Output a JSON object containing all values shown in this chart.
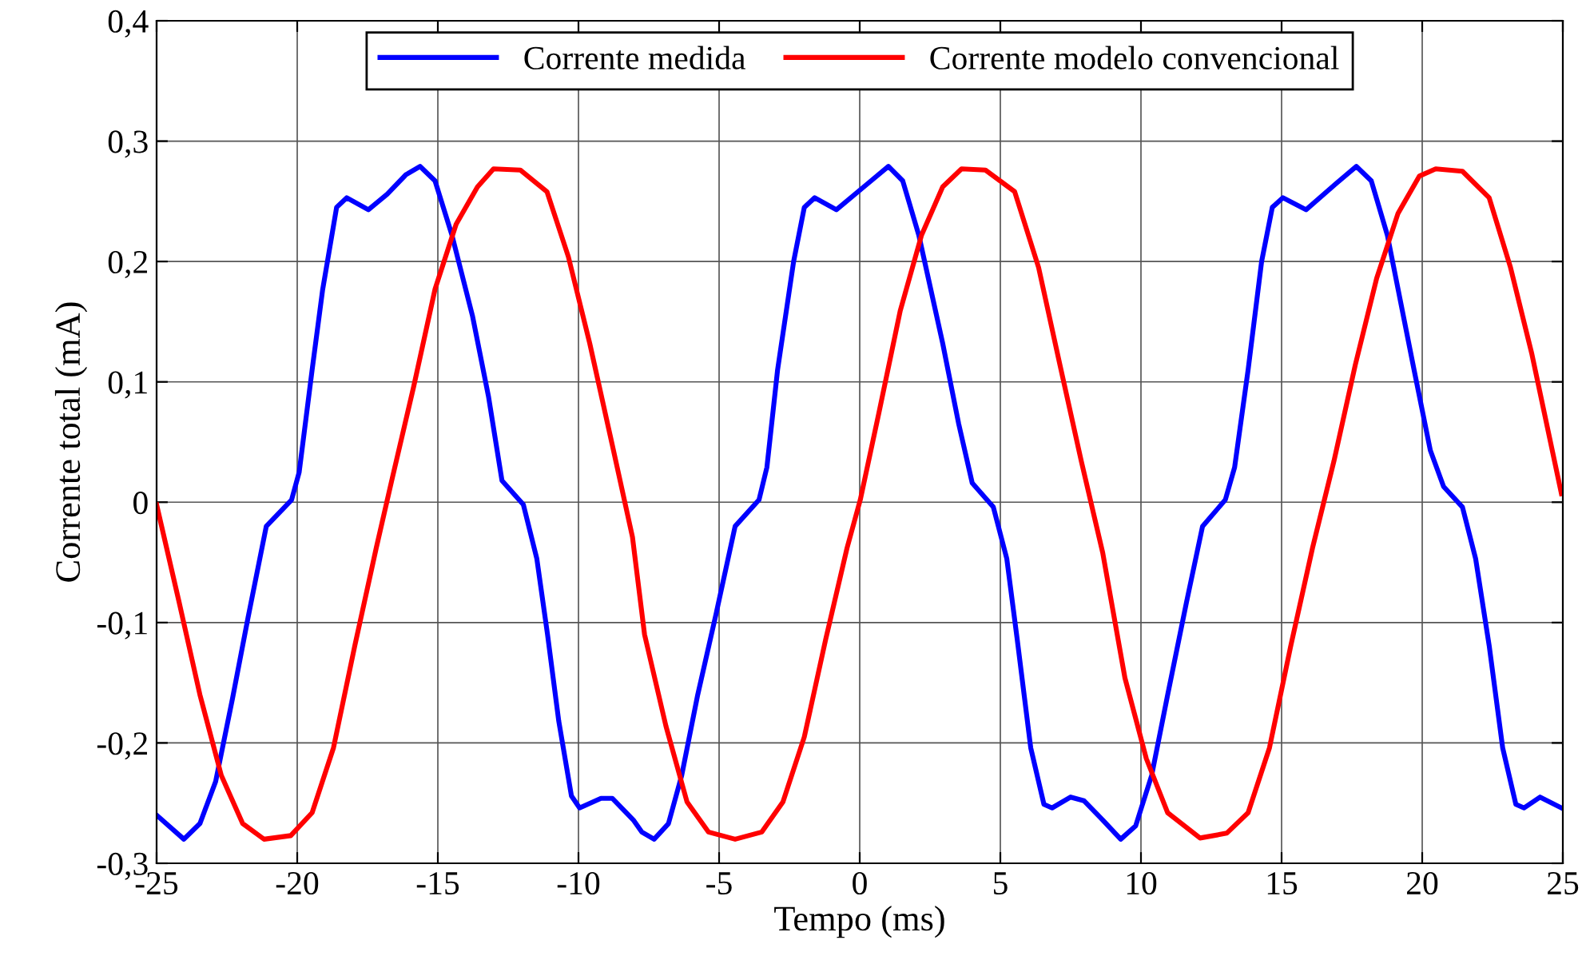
{
  "chart_data": {
    "type": "line",
    "xlabel": "Tempo (ms)",
    "ylabel": "Corrente total (mA)",
    "xlim": [
      -25,
      25
    ],
    "xticks": [
      -25,
      -20,
      -15,
      -10,
      -5,
      0,
      5,
      10,
      15,
      20,
      25
    ],
    "ylim": [
      -0.3,
      0.4
    ],
    "yticks": [
      {
        "value": -0.3,
        "label": "-0,3"
      },
      {
        "value": -0.2,
        "label": "-0,2"
      },
      {
        "value": -0.1,
        "label": "-0,1"
      },
      {
        "value": 0,
        "label": "0"
      },
      {
        "value": 0.1,
        "label": "0,1"
      },
      {
        "value": 0.2,
        "label": "0,2"
      },
      {
        "value": 0.3,
        "label": "0,3"
      },
      {
        "value": 0.4,
        "label": "0,4"
      }
    ],
    "grid": true,
    "legend": "top",
    "marker": "none",
    "line_style": "solid",
    "series": [
      {
        "name": "Corrente medida",
        "color": "#0000ff",
        "x": [
          -25,
          -24.03,
          -23.46,
          -22.9,
          -22.3,
          -21.75,
          -21.1,
          -20.2,
          -19.93,
          -19.47,
          -19.1,
          -18.6,
          -18.24,
          -17.47,
          -16.8,
          -16.14,
          -15.63,
          -15.1,
          -14.5,
          -13.77,
          -13.2,
          -12.72,
          -11.96,
          -11.48,
          -11.1,
          -10.7,
          -10.25,
          -9.96,
          -9.2,
          -8.8,
          -8.05,
          -7.75,
          -7.31,
          -6.8,
          -6.33,
          -5.76,
          -5.1,
          -4.43,
          -3.58,
          -3.3,
          -2.92,
          -2.35,
          -1.97,
          -1.6,
          -0.83,
          0.3,
          1.02,
          1.53,
          2.1,
          2.95,
          3.52,
          4.0,
          4.75,
          5.23,
          5.6,
          6.08,
          6.55,
          6.84,
          7.5,
          7.97,
          8.64,
          9.28,
          9.81,
          10.38,
          10.95,
          11.62,
          12.19,
          13.0,
          13.33,
          13.81,
          14.29,
          14.67,
          15.05,
          15.87,
          16.95,
          17.66,
          18.19,
          18.76,
          19.71,
          20.29,
          20.76,
          21.43,
          21.9,
          22.38,
          22.86,
          23.33,
          23.62,
          24.19,
          24.95
        ],
        "values": [
          -0.26,
          -0.28,
          -0.267,
          -0.232,
          -0.163,
          -0.096,
          -0.02,
          0.002,
          0.025,
          0.11,
          0.176,
          0.245,
          0.253,
          0.243,
          0.256,
          0.272,
          0.279,
          0.267,
          0.222,
          0.155,
          0.088,
          0.018,
          -0.002,
          -0.047,
          -0.11,
          -0.182,
          -0.244,
          -0.254,
          -0.246,
          -0.246,
          -0.264,
          -0.274,
          -0.28,
          -0.267,
          -0.227,
          -0.16,
          -0.092,
          -0.02,
          0.002,
          0.029,
          0.11,
          0.2,
          0.245,
          0.253,
          0.243,
          0.265,
          0.279,
          0.267,
          0.222,
          0.132,
          0.065,
          0.016,
          -0.004,
          -0.047,
          -0.114,
          -0.204,
          -0.251,
          -0.254,
          -0.245,
          -0.248,
          -0.264,
          -0.28,
          -0.269,
          -0.227,
          -0.16,
          -0.083,
          -0.02,
          0.002,
          0.029,
          0.11,
          0.2,
          0.245,
          0.253,
          0.243,
          0.265,
          0.279,
          0.267,
          0.222,
          0.11,
          0.043,
          0.013,
          -0.004,
          -0.047,
          -0.119,
          -0.204,
          -0.251,
          -0.254,
          -0.245,
          -0.254
        ]
      },
      {
        "name": "Corrente modelo convencional",
        "color": "#ff0000",
        "x": [
          -25,
          -24.2,
          -23.46,
          -22.7,
          -21.94,
          -21.18,
          -20.23,
          -19.47,
          -18.71,
          -17.95,
          -17.19,
          -16.62,
          -15.86,
          -15.1,
          -14.35,
          -13.59,
          -13.02,
          -12.07,
          -11.12,
          -10.36,
          -9.6,
          -8.84,
          -8.08,
          -7.65,
          -6.89,
          -6.14,
          -5.38,
          -4.43,
          -3.48,
          -2.73,
          -1.97,
          -1.21,
          -0.45,
          0.02,
          0.68,
          1.44,
          2.2,
          2.95,
          3.62,
          4.47,
          5.51,
          6.36,
          7.12,
          7.88,
          8.64,
          9.43,
          10.19,
          10.95,
          12.1,
          13.05,
          13.81,
          14.57,
          15.33,
          16.1,
          16.86,
          17.62,
          18.38,
          19.14,
          19.9,
          20.48,
          21.43,
          22.38,
          23.14,
          23.9,
          24.95
        ],
        "values": [
          -0.002,
          -0.083,
          -0.16,
          -0.227,
          -0.267,
          -0.28,
          -0.277,
          -0.258,
          -0.204,
          -0.119,
          -0.038,
          0.02,
          0.096,
          0.177,
          0.231,
          0.262,
          0.277,
          0.276,
          0.258,
          0.204,
          0.132,
          0.052,
          -0.029,
          -0.11,
          -0.186,
          -0.249,
          -0.274,
          -0.28,
          -0.274,
          -0.249,
          -0.195,
          -0.114,
          -0.038,
          0.002,
          0.074,
          0.159,
          0.222,
          0.262,
          0.277,
          0.276,
          0.258,
          0.195,
          0.114,
          0.034,
          -0.042,
          -0.146,
          -0.213,
          -0.258,
          -0.279,
          -0.275,
          -0.258,
          -0.204,
          -0.119,
          -0.038,
          0.034,
          0.114,
          0.186,
          0.24,
          0.271,
          0.277,
          0.275,
          0.253,
          0.195,
          0.123,
          0.007
        ]
      }
    ]
  }
}
